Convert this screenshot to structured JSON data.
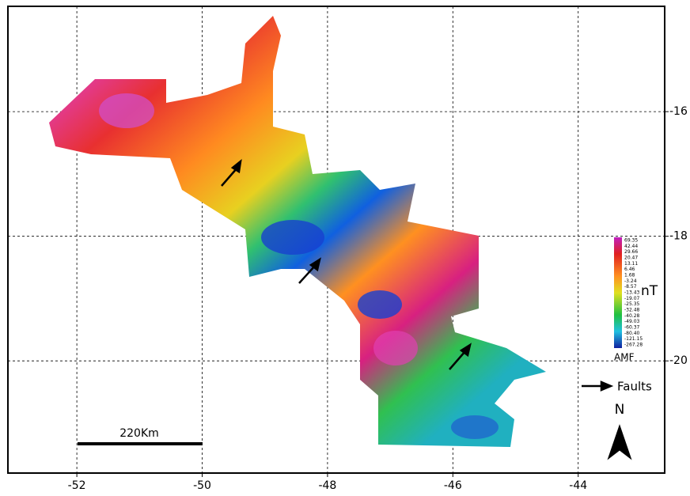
{
  "map": {
    "xlim": [
      -53.1,
      -42.62
    ],
    "xticks": [
      -52,
      -50,
      -48,
      -46,
      -44
    ],
    "ylim": [
      -21.8,
      -14.31
    ],
    "yticks": [
      -16,
      -18,
      -20
    ],
    "grid": true,
    "colorbar": {
      "unit": "nT",
      "label": "AMF",
      "labels": [
        "69.35",
        "42.44",
        "29.66",
        "20.47",
        "13.11",
        "6.46",
        "1.68",
        "-3.24",
        "-8.57",
        "-13.43",
        "-19.07",
        "-25.35",
        "-32.48",
        "-40.28",
        "-49.03",
        "-60.37",
        "-80.40",
        "-121.15",
        "-267.28"
      ]
    },
    "legend": "Faults",
    "north": "N",
    "scale_bar": "220Km"
  }
}
